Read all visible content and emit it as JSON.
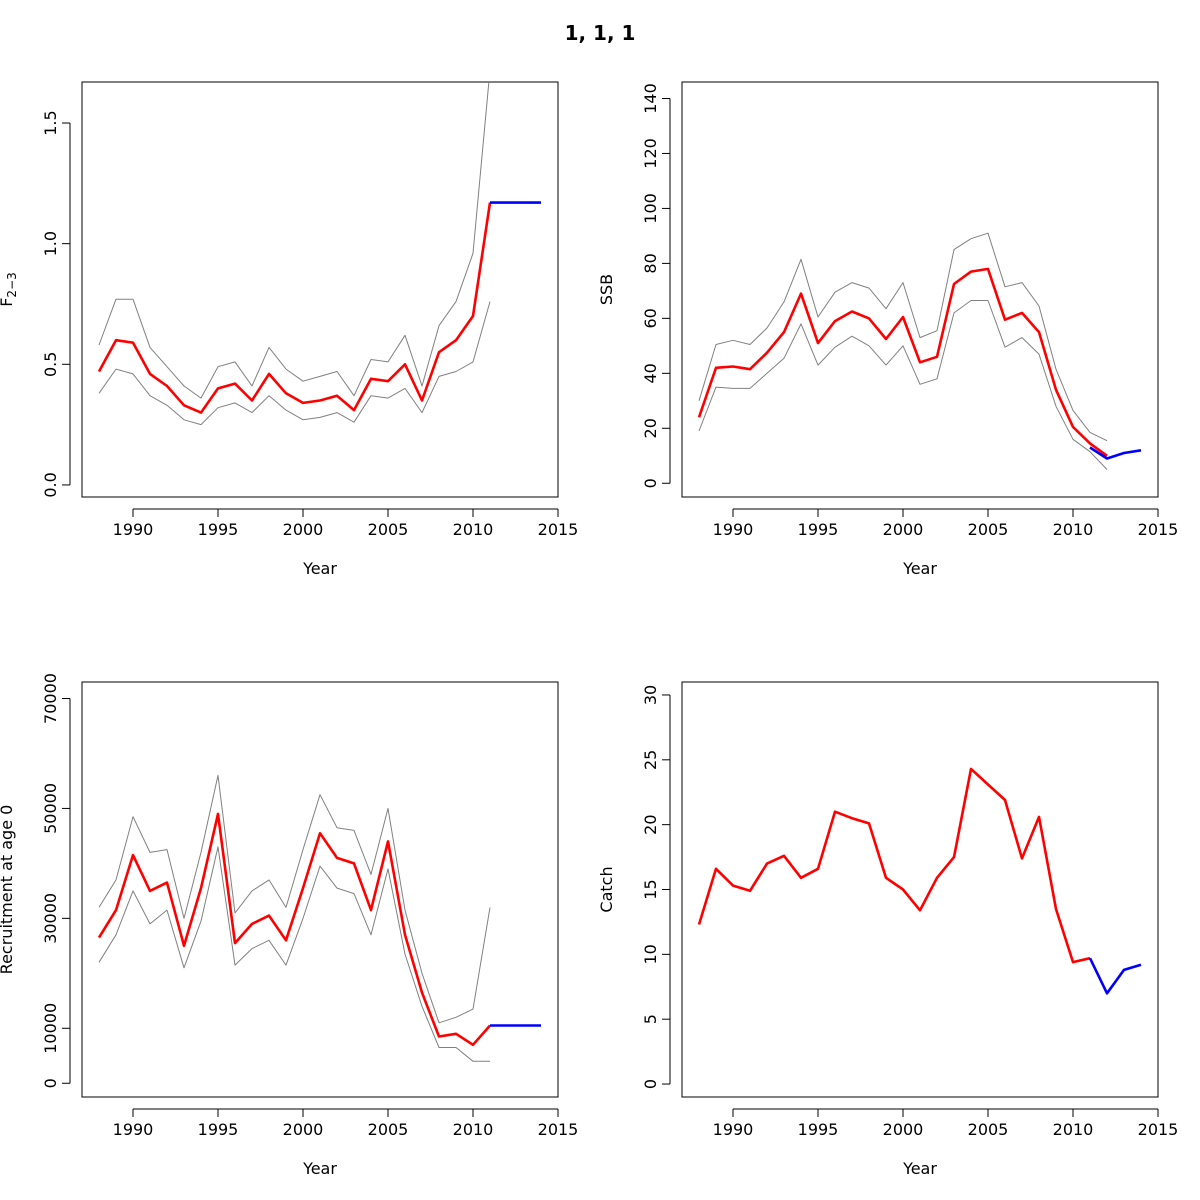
{
  "figure": {
    "title": "1, 1, 1"
  },
  "chart_data": [
    {
      "type": "line",
      "xlabel": "Year",
      "ylabel_main": "F",
      "ylabel_sub": "2−3",
      "xlim": [
        1987,
        2015
      ],
      "ylim": [
        -0.05,
        1.67
      ],
      "xticks": [
        1990,
        1995,
        2000,
        2005,
        2010,
        2015
      ],
      "yticks": [
        0.0,
        0.5,
        1.0,
        1.5
      ],
      "ytick_labels": [
        "0.0",
        "0.5",
        "1.0",
        "1.5"
      ],
      "grid": false,
      "series": [
        {
          "role": "upper",
          "color": "#808080",
          "x": [
            1988,
            1989,
            1990,
            1991,
            1992,
            1993,
            1994,
            1995,
            1996,
            1997,
            1998,
            1999,
            2000,
            2001,
            2002,
            2003,
            2004,
            2005,
            2006,
            2007,
            2008,
            2009,
            2010,
            2011
          ],
          "y": [
            0.58,
            0.77,
            0.77,
            0.57,
            0.49,
            0.41,
            0.36,
            0.49,
            0.51,
            0.41,
            0.57,
            0.48,
            0.43,
            0.45,
            0.47,
            0.37,
            0.52,
            0.51,
            0.62,
            0.41,
            0.66,
            0.76,
            0.96,
            1.72
          ]
        },
        {
          "role": "estimate",
          "color": "#ff0000",
          "x": [
            1988,
            1989,
            1990,
            1991,
            1992,
            1993,
            1994,
            1995,
            1996,
            1997,
            1998,
            1999,
            2000,
            2001,
            2002,
            2003,
            2004,
            2005,
            2006,
            2007,
            2008,
            2009,
            2010,
            2011
          ],
          "y": [
            0.47,
            0.6,
            0.59,
            0.46,
            0.41,
            0.33,
            0.3,
            0.4,
            0.42,
            0.35,
            0.46,
            0.38,
            0.34,
            0.35,
            0.37,
            0.31,
            0.44,
            0.43,
            0.5,
            0.35,
            0.55,
            0.6,
            0.7,
            1.17
          ]
        },
        {
          "role": "lower",
          "color": "#808080",
          "x": [
            1988,
            1989,
            1990,
            1991,
            1992,
            1993,
            1994,
            1995,
            1996,
            1997,
            1998,
            1999,
            2000,
            2001,
            2002,
            2003,
            2004,
            2005,
            2006,
            2007,
            2008,
            2009,
            2010,
            2011
          ],
          "y": [
            0.38,
            0.48,
            0.46,
            0.37,
            0.33,
            0.27,
            0.25,
            0.32,
            0.34,
            0.3,
            0.37,
            0.31,
            0.27,
            0.28,
            0.3,
            0.26,
            0.37,
            0.36,
            0.4,
            0.3,
            0.45,
            0.47,
            0.51,
            0.76
          ]
        },
        {
          "role": "forecast",
          "color": "#0000ff",
          "x": [
            2011,
            2012,
            2013,
            2014
          ],
          "y": [
            1.17,
            1.17,
            1.17,
            1.17
          ]
        }
      ]
    },
    {
      "type": "line",
      "xlabel": "Year",
      "ylabel_main": "SSB",
      "xlim": [
        1987,
        2015
      ],
      "ylim": [
        -5,
        146
      ],
      "xticks": [
        1990,
        1995,
        2000,
        2005,
        2010,
        2015
      ],
      "yticks": [
        0,
        20,
        40,
        60,
        80,
        100,
        120,
        140
      ],
      "ytick_labels": [
        "0",
        "20",
        "40",
        "60",
        "80",
        "100",
        "120",
        "140"
      ],
      "grid": false,
      "series": [
        {
          "role": "upper",
          "color": "#808080",
          "x": [
            1988,
            1989,
            1990,
            1991,
            1992,
            1993,
            1994,
            1995,
            1996,
            1997,
            1998,
            1999,
            2000,
            2001,
            2002,
            2003,
            2004,
            2005,
            2006,
            2007,
            2008,
            2009,
            2010,
            2011,
            2012
          ],
          "y": [
            30,
            50.5,
            52,
            50.5,
            56.5,
            66,
            81.5,
            60.5,
            69.5,
            73,
            71,
            63.5,
            73,
            53,
            55.5,
            85,
            89,
            91,
            71.5,
            73,
            64.5,
            41.5,
            26.5,
            18.5,
            15.5
          ]
        },
        {
          "role": "estimate",
          "color": "#ff0000",
          "x": [
            1988,
            1989,
            1990,
            1991,
            1992,
            1993,
            1994,
            1995,
            1996,
            1997,
            1998,
            1999,
            2000,
            2001,
            2002,
            2003,
            2004,
            2005,
            2006,
            2007,
            2008,
            2009,
            2010,
            2011,
            2012
          ],
          "y": [
            24,
            42,
            42.5,
            41.5,
            47.5,
            55,
            69,
            51,
            59,
            62.5,
            60,
            52.5,
            60.5,
            44,
            46,
            72.5,
            77,
            78,
            59.5,
            62,
            55,
            34,
            20.5,
            14.5,
            10
          ]
        },
        {
          "role": "lower",
          "color": "#808080",
          "x": [
            1988,
            1989,
            1990,
            1991,
            1992,
            1993,
            1994,
            1995,
            1996,
            1997,
            1998,
            1999,
            2000,
            2001,
            2002,
            2003,
            2004,
            2005,
            2006,
            2007,
            2008,
            2009,
            2010,
            2011,
            2012
          ],
          "y": [
            19,
            35,
            34.5,
            34.5,
            40,
            45.5,
            58,
            43,
            49.5,
            53.5,
            50,
            43,
            50,
            36,
            38,
            62,
            66.5,
            66.5,
            49.5,
            53,
            47,
            28,
            16,
            11.5,
            5
          ]
        },
        {
          "role": "forecast",
          "color": "#0000ff",
          "x": [
            2011,
            2012,
            2013,
            2014
          ],
          "y": [
            13,
            9,
            11,
            12
          ]
        }
      ]
    },
    {
      "type": "line",
      "xlabel": "Year",
      "ylabel_main": "Recruitment at age 0",
      "xlim": [
        1987,
        2015
      ],
      "ylim": [
        -2500,
        73000
      ],
      "xticks": [
        1990,
        1995,
        2000,
        2005,
        2010,
        2015
      ],
      "yticks": [
        0,
        10000,
        30000,
        50000,
        70000
      ],
      "ytick_labels": [
        "0",
        "10000",
        "30000",
        "50000",
        "70000"
      ],
      "grid": false,
      "series": [
        {
          "role": "upper",
          "color": "#808080",
          "x": [
            1988,
            1989,
            1990,
            1991,
            1992,
            1993,
            1994,
            1995,
            1996,
            1997,
            1998,
            1999,
            2000,
            2001,
            2002,
            2003,
            2004,
            2005,
            2006,
            2007,
            2008,
            2009,
            2010,
            2011
          ],
          "y": [
            32000,
            37000,
            48500,
            42000,
            42500,
            30000,
            42000,
            56000,
            31000,
            35000,
            37000,
            32000,
            42500,
            52500,
            46500,
            46000,
            38000,
            50000,
            31500,
            20000,
            11000,
            12000,
            13500,
            32000
          ]
        },
        {
          "role": "estimate",
          "color": "#ff0000",
          "x": [
            1988,
            1989,
            1990,
            1991,
            1992,
            1993,
            1994,
            1995,
            1996,
            1997,
            1998,
            1999,
            2000,
            2001,
            2002,
            2003,
            2004,
            2005,
            2006,
            2007,
            2008,
            2009,
            2010,
            2011
          ],
          "y": [
            26500,
            31500,
            41500,
            35000,
            36500,
            25000,
            35500,
            49000,
            25500,
            29000,
            30500,
            26000,
            35500,
            45500,
            41000,
            40000,
            31500,
            44000,
            27000,
            16500,
            8500,
            9000,
            7000,
            10500
          ]
        },
        {
          "role": "lower",
          "color": "#808080",
          "x": [
            1988,
            1989,
            1990,
            1991,
            1992,
            1993,
            1994,
            1995,
            1996,
            1997,
            1998,
            1999,
            2000,
            2001,
            2002,
            2003,
            2004,
            2005,
            2006,
            2007,
            2008,
            2009,
            2010,
            2011
          ],
          "y": [
            22000,
            27000,
            35000,
            29000,
            31500,
            21000,
            29500,
            43000,
            21500,
            24500,
            26000,
            21500,
            30000,
            39500,
            35500,
            34500,
            27000,
            39000,
            23500,
            14000,
            6500,
            6500,
            4000,
            4000
          ]
        },
        {
          "role": "forecast",
          "color": "#0000ff",
          "x": [
            2011,
            2012,
            2013,
            2014
          ],
          "y": [
            10500,
            10500,
            10500,
            10500
          ]
        }
      ]
    },
    {
      "type": "line",
      "xlabel": "Year",
      "ylabel_main": "Catch",
      "xlim": [
        1987,
        2015
      ],
      "ylim": [
        -1,
        31
      ],
      "xticks": [
        1990,
        1995,
        2000,
        2005,
        2010,
        2015
      ],
      "yticks": [
        0,
        5,
        10,
        15,
        20,
        25,
        30
      ],
      "ytick_labels": [
        "0",
        "5",
        "10",
        "15",
        "20",
        "25",
        "30"
      ],
      "grid": false,
      "series": [
        {
          "role": "estimate",
          "color": "#ff0000",
          "x": [
            1988,
            1989,
            1990,
            1991,
            1992,
            1993,
            1994,
            1995,
            1996,
            1997,
            1998,
            1999,
            2000,
            2001,
            2002,
            2003,
            2004,
            2005,
            2006,
            2007,
            2008,
            2009,
            2010,
            2011
          ],
          "y": [
            12.3,
            16.6,
            15.3,
            14.9,
            17.0,
            17.6,
            15.9,
            16.6,
            21.0,
            20.5,
            20.1,
            15.9,
            15.0,
            13.4,
            15.9,
            17.5,
            24.3,
            23.1,
            21.9,
            17.4,
            20.6,
            13.5,
            9.4,
            9.7
          ]
        },
        {
          "role": "forecast",
          "color": "#0000ff",
          "x": [
            2011,
            2012,
            2013,
            2014
          ],
          "y": [
            9.7,
            7.0,
            8.8,
            9.2
          ]
        }
      ]
    }
  ]
}
